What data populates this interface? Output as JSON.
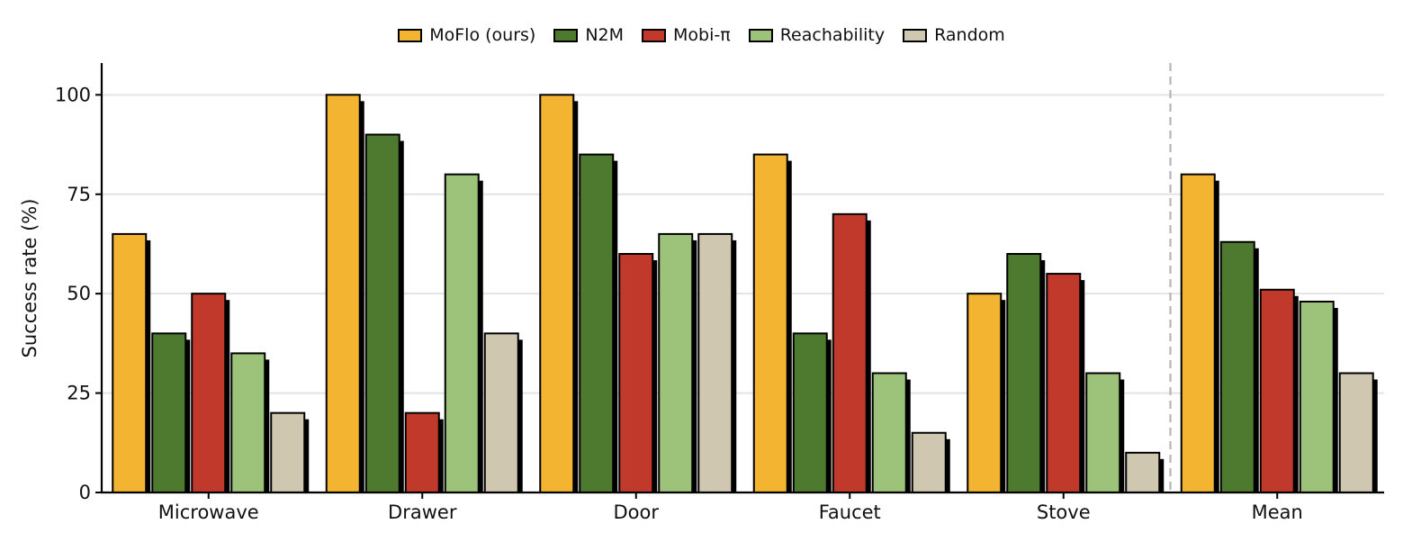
{
  "chart_data": {
    "type": "bar",
    "title": "",
    "xlabel": "",
    "ylabel": "Success rate (%)",
    "ylim": [
      0,
      108
    ],
    "yticks": [
      0,
      25,
      50,
      75,
      100
    ],
    "grid": "horizontal",
    "legend_position": "top-center",
    "categories": [
      "Microwave",
      "Drawer",
      "Door",
      "Faucet",
      "Stove",
      "Mean"
    ],
    "separator_before": "Mean",
    "series": [
      {
        "name": "MoFlo (ours)",
        "color": "#F2B431",
        "values": [
          65,
          100,
          100,
          85,
          50,
          80
        ]
      },
      {
        "name": "N2M",
        "color": "#4E7A2F",
        "values": [
          40,
          90,
          85,
          40,
          60,
          63
        ]
      },
      {
        "name": "Mobi-π",
        "color": "#C0392B",
        "values": [
          50,
          20,
          60,
          70,
          55,
          51
        ]
      },
      {
        "name": "Reachability",
        "color": "#9DC37A",
        "values": [
          35,
          80,
          65,
          30,
          30,
          48
        ]
      },
      {
        "name": "Random",
        "color": "#CFC7B0",
        "values": [
          20,
          40,
          65,
          15,
          10,
          30
        ]
      }
    ]
  }
}
